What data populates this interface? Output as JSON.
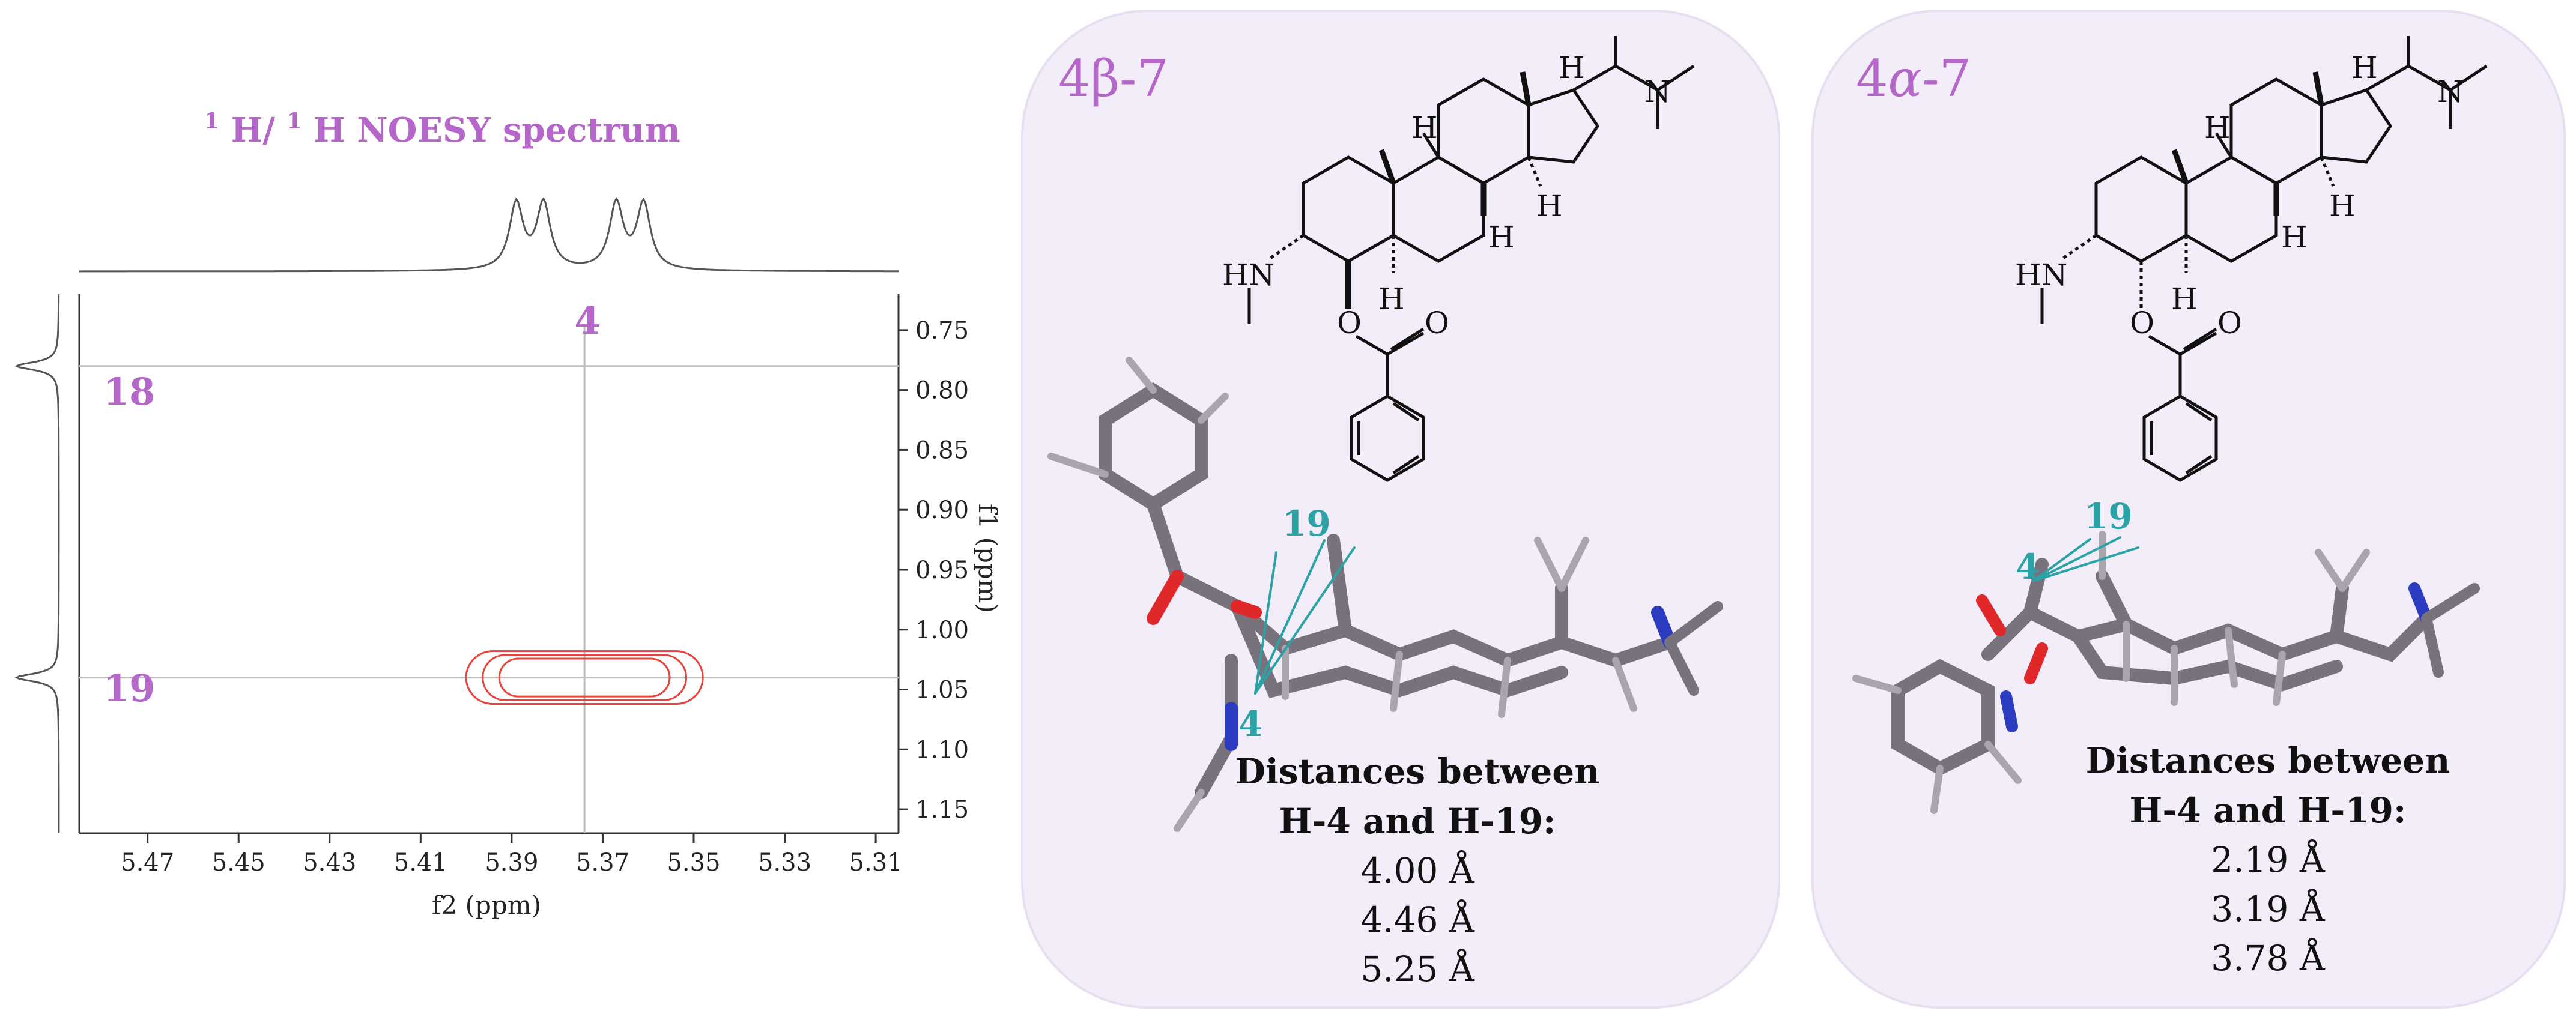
{
  "spectrum": {
    "title_parts": [
      "1",
      "H/",
      "1",
      "H NOESY spectrum"
    ],
    "xlabel": "f2 (ppm)",
    "ylabel": "f1 (ppm)",
    "x_ticks": [
      "5.47",
      "5.45",
      "5.43",
      "5.41",
      "5.39",
      "5.37",
      "5.35",
      "5.33",
      "5.31"
    ],
    "y_ticks": [
      "0.75",
      "0.80",
      "0.85",
      "0.90",
      "0.95",
      "1.00",
      "1.05",
      "1.10",
      "1.15"
    ],
    "cross_label": "4",
    "row_labels": [
      "18",
      "19"
    ],
    "accent_color": "#b567c9",
    "contour_color": "#e8423a"
  },
  "chart_data": {
    "type": "heatmap",
    "title": "1H/1H NOESY spectrum",
    "xlabel": "f2 (ppm)",
    "ylabel": "f1 (ppm)",
    "xlim": [
      5.485,
      5.305
    ],
    "ylim": [
      0.72,
      1.17
    ],
    "x_ticks": [
      5.47,
      5.45,
      5.43,
      5.41,
      5.39,
      5.37,
      5.35,
      5.33,
      5.31
    ],
    "y_ticks": [
      0.75,
      0.8,
      0.85,
      0.9,
      0.95,
      1.0,
      1.05,
      1.1,
      1.15
    ],
    "f2_peaks_ppm": [
      5.389,
      5.383,
      5.367,
      5.361
    ],
    "f1_peaks_ppm": [
      0.78,
      1.04
    ],
    "crosshair_f2": 5.374,
    "row_lines_f1": [
      0.78,
      1.04
    ],
    "cross_peak": {
      "f2_center": 5.374,
      "f1_center": 1.04,
      "f2_halfwidth": 0.026,
      "f1_halfwidth": 0.022
    }
  },
  "panels": [
    {
      "title_prefix": "4",
      "title_greek": "β",
      "title_suffix": "-7",
      "atom_labels": [
        "19",
        "4"
      ],
      "distances_title_1": "Distances between",
      "distances_title_2": "H-4 and H-19:",
      "distances": [
        "4.00 Å",
        "4.46 Å",
        "5.25 Å"
      ]
    },
    {
      "title_prefix": "4",
      "title_greek": "α",
      "title_suffix": "-7",
      "atom_labels": [
        "19",
        "4"
      ],
      "distances_title_1": "Distances between",
      "distances_title_2": "H-4 and H-19:",
      "distances": [
        "2.19 Å",
        "3.19 Å",
        "3.78 Å"
      ]
    }
  ],
  "structure_labels": {
    "h": "H",
    "n": "N",
    "o": "O",
    "hn": "HN"
  },
  "colors": {
    "panel_fill": "#f3ecf9",
    "panel_stroke": "#e6dcef",
    "teal": "#2aa2a6",
    "bond": "#75707a",
    "oxygen": "#e0282a",
    "nitrogen": "#2c3cc0"
  }
}
